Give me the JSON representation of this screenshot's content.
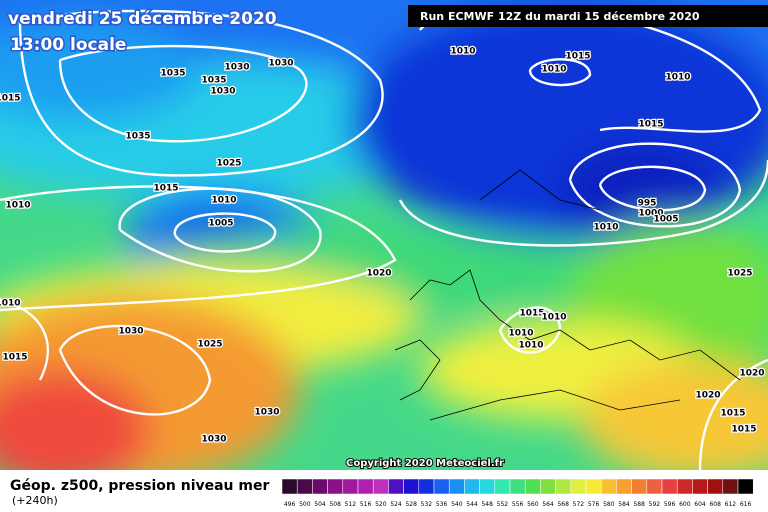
{
  "header": {
    "date": "vendredi 25 décembre 2020",
    "time": "13:00 locale",
    "run": "Run ECMWF 12Z du mardi 15 décembre 2020"
  },
  "isobars": [
    "1035",
    "1030",
    "1030",
    "1035",
    "1030",
    "1015",
    "1035",
    "1025",
    "1015",
    "1010",
    "1010",
    "1005",
    "1020",
    "1010",
    "1030",
    "1025",
    "1015",
    "1030",
    "1030",
    "1010",
    "1015",
    "1010",
    "1010",
    "1015",
    "995",
    "1000",
    "1005",
    "1010",
    "1015",
    "1010",
    "1010",
    "1010",
    "1025",
    "1020",
    "1020",
    "1015",
    "1015"
  ],
  "copyright": "Copyright 2020 Meteociel.fr",
  "legend": {
    "title": "Géop. z500, pression niveau mer",
    "lead": "(+240h)",
    "scale": [
      "496",
      "500",
      "504",
      "508",
      "512",
      "516",
      "520",
      "524",
      "528",
      "532",
      "536",
      "540",
      "544",
      "548",
      "552",
      "556",
      "560",
      "564",
      "568",
      "572",
      "576",
      "580",
      "584",
      "588",
      "592",
      "596",
      "600",
      "604",
      "608",
      "612",
      "616"
    ]
  }
}
